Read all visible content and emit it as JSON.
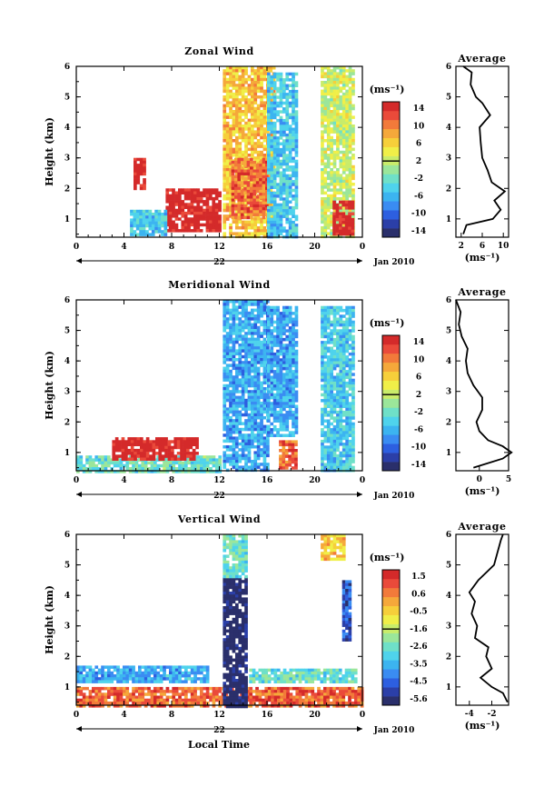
{
  "figure": {
    "x_axis_label": "Local Time",
    "date_label": "Jan 2010",
    "day_label": "22",
    "time_ticks": [
      "0",
      "4",
      "8",
      "12",
      "16",
      "20",
      "0"
    ]
  },
  "panels": [
    {
      "id": "zonal",
      "title": "Zonal Wind",
      "ylabel": "Height (km)",
      "height_ticks": [
        "1",
        "2",
        "3",
        "4",
        "5",
        "6"
      ],
      "colorbar_unit": "(ms⁻¹)",
      "colorbar_ticks": [
        "14",
        "10",
        "6",
        "2",
        "-2",
        "-6",
        "-10",
        "-14"
      ],
      "average_title": "Average",
      "average_unit": "(ms⁻¹)",
      "average_ticks": [
        "2",
        "6",
        "10"
      ]
    },
    {
      "id": "meridional",
      "title": "Meridional Wind",
      "ylabel": "Height (km)",
      "height_ticks": [
        "1",
        "2",
        "3",
        "4",
        "5",
        "6"
      ],
      "colorbar_unit": "(ms⁻¹)",
      "colorbar_ticks": [
        "14",
        "10",
        "6",
        "2",
        "-2",
        "-6",
        "-10",
        "-14"
      ],
      "average_title": "Average",
      "average_unit": "(ms⁻¹)",
      "average_ticks": [
        "0",
        "5"
      ]
    },
    {
      "id": "vertical",
      "title": "Vertical Wind",
      "ylabel": "Height (km)",
      "height_ticks": [
        "1",
        "2",
        "3",
        "4",
        "5",
        "6"
      ],
      "colorbar_unit": "(ms⁻¹)",
      "colorbar_ticks": [
        "1.5",
        "0.6",
        "-0.5",
        "-1.6",
        "-2.6",
        "-3.5",
        "-4.5",
        "-5.6"
      ],
      "average_title": "Average",
      "average_unit": "(ms⁻¹)",
      "average_ticks": [
        "-4",
        "-2"
      ]
    }
  ],
  "colors": {
    "colormap": [
      "#2a2f6b",
      "#2b3fa8",
      "#2d5fe0",
      "#3a8cf2",
      "#3cb4f0",
      "#4fd3ec",
      "#6fe0c8",
      "#9be69a",
      "#c9ec6a",
      "#f0ef48",
      "#f6cf3a",
      "#f5a83a",
      "#f27a3a",
      "#ea4a3a",
      "#d42a2a"
    ],
    "zero_line": "#000000"
  },
  "chart_data": [
    {
      "type": "heatmap",
      "title": "Zonal Wind",
      "xlabel": "",
      "ylabel": "Height (km)",
      "xlim": [
        0,
        24
      ],
      "ylim": [
        0.4,
        6.0
      ],
      "colorbar_range": [
        -14,
        14
      ],
      "features": [
        {
          "t0": 12.3,
          "t1": 16.5,
          "h0": 0.4,
          "h1": 6.0,
          "value": 6
        },
        {
          "t0": 13.0,
          "t1": 16.0,
          "h0": 1.0,
          "h1": 3.0,
          "value": 10
        },
        {
          "t0": 16.0,
          "t1": 18.5,
          "h0": 0.4,
          "h1": 5.8,
          "value": -4
        },
        {
          "t0": 20.5,
          "t1": 23.3,
          "h0": 0.4,
          "h1": 6.0,
          "value": 2
        },
        {
          "t0": 21.5,
          "t1": 23.2,
          "h0": 0.5,
          "h1": 1.6,
          "value": 14
        },
        {
          "t0": 4.8,
          "t1": 5.6,
          "h0": 2.0,
          "h1": 3.0,
          "value": 14
        },
        {
          "t0": 7.5,
          "t1": 12.0,
          "h0": 0.6,
          "h1": 2.0,
          "value": 14
        },
        {
          "t0": 4.5,
          "t1": 7.5,
          "h0": 0.5,
          "h1": 1.3,
          "value": -4
        }
      ],
      "average_profile": {
        "xlim": [
          1,
          11
        ],
        "height": [
          0.5,
          0.8,
          1.0,
          1.3,
          1.6,
          1.9,
          2.2,
          2.6,
          3.0,
          3.5,
          4.0,
          4.4,
          4.8,
          5.0,
          5.4,
          5.8,
          6.0
        ],
        "value": [
          2.4,
          3.0,
          8.0,
          9.5,
          8.3,
          10.3,
          7.8,
          7.0,
          6.0,
          5.7,
          5.5,
          7.5,
          6.0,
          4.8,
          3.8,
          4.0,
          2.4
        ]
      }
    },
    {
      "type": "heatmap",
      "title": "Meridional Wind",
      "xlabel": "",
      "ylabel": "Height (km)",
      "xlim": [
        0,
        24
      ],
      "ylim": [
        0.4,
        6.0
      ],
      "colorbar_range": [
        -14,
        14
      ],
      "features": [
        {
          "t0": 0.0,
          "t1": 12.0,
          "h0": 0.4,
          "h1": 0.9,
          "value": -2
        },
        {
          "t0": 3.0,
          "t1": 10.0,
          "h0": 0.8,
          "h1": 1.5,
          "value": 14
        },
        {
          "t0": 12.3,
          "t1": 16.0,
          "h0": 0.4,
          "h1": 6.0,
          "value": -6
        },
        {
          "t0": 16.0,
          "t1": 18.5,
          "h0": 1.6,
          "h1": 5.8,
          "value": -6
        },
        {
          "t0": 17.0,
          "t1": 18.5,
          "h0": 0.5,
          "h1": 1.4,
          "value": 10
        },
        {
          "t0": 20.5,
          "t1": 23.3,
          "h0": 0.4,
          "h1": 5.8,
          "value": -4
        }
      ],
      "average_profile": {
        "xlim": [
          -4,
          5
        ],
        "height": [
          0.5,
          0.8,
          1.0,
          1.2,
          1.4,
          1.7,
          2.0,
          2.4,
          2.8,
          3.2,
          3.6,
          4.0,
          4.4,
          4.8,
          5.2,
          5.6,
          6.0
        ],
        "value": [
          -1.0,
          4.0,
          5.5,
          4.0,
          1.5,
          0.0,
          -0.5,
          0.5,
          0.5,
          -1.0,
          -2.0,
          -2.3,
          -2.0,
          -3.0,
          -3.5,
          -3.2,
          -4.0
        ]
      }
    },
    {
      "type": "heatmap",
      "title": "Vertical Wind",
      "xlabel": "Local Time",
      "ylabel": "Height (km)",
      "xlim": [
        0,
        24
      ],
      "ylim": [
        0.4,
        6.0
      ],
      "colorbar_range": [
        -5.6,
        1.5
      ],
      "features": [
        {
          "t0": 0.0,
          "t1": 11.0,
          "h0": 1.2,
          "h1": 1.7,
          "value": -3.5
        },
        {
          "t0": 0.0,
          "t1": 24.0,
          "h0": 0.4,
          "h1": 1.0,
          "value": 0.6
        },
        {
          "t0": 12.3,
          "t1": 14.3,
          "h0": 0.4,
          "h1": 4.6,
          "value": -5.6
        },
        {
          "t0": 12.3,
          "t1": 14.3,
          "h0": 4.6,
          "h1": 6.0,
          "value": -2.6
        },
        {
          "t0": 14.5,
          "t1": 23.5,
          "h0": 1.2,
          "h1": 1.6,
          "value": -2.6
        },
        {
          "t0": 22.3,
          "t1": 23.0,
          "h0": 2.5,
          "h1": 4.5,
          "value": -4.5
        },
        {
          "t0": 20.5,
          "t1": 22.5,
          "h0": 5.2,
          "h1": 6.0,
          "value": -0.5
        }
      ],
      "average_profile": {
        "xlim": [
          -5.2,
          -0.5
        ],
        "height": [
          0.5,
          0.8,
          1.0,
          1.3,
          1.6,
          2.0,
          2.3,
          2.6,
          3.0,
          3.4,
          3.8,
          4.1,
          4.5,
          5.0,
          5.4,
          5.8,
          6.0
        ],
        "value": [
          -0.6,
          -1.0,
          -2.0,
          -3.0,
          -2.0,
          -2.5,
          -2.3,
          -3.5,
          -3.3,
          -3.8,
          -3.5,
          -4.0,
          -3.2,
          -1.8,
          -1.5,
          -1.2,
          -1.0
        ]
      }
    }
  ]
}
